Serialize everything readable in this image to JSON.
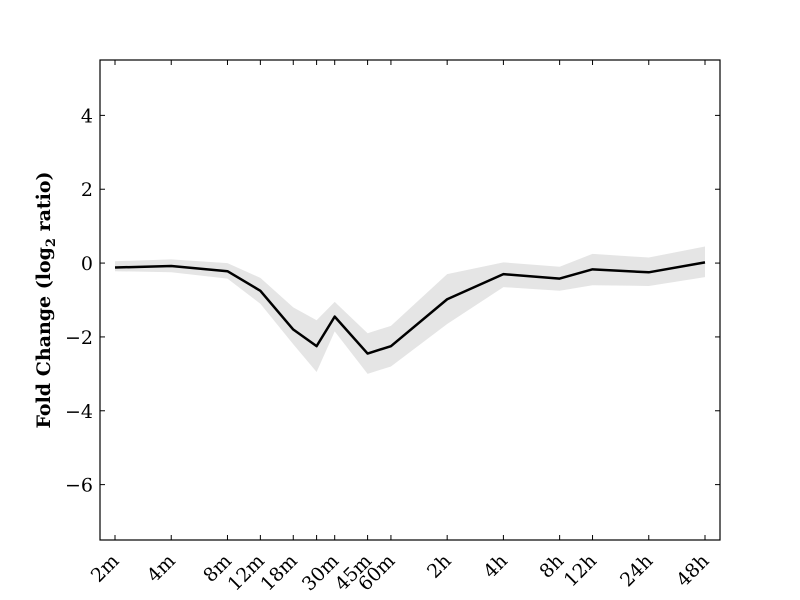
{
  "chart_data": {
    "type": "line",
    "title": "",
    "xlabel": "",
    "ylabel": "Fold Change (log",
    "ylabel_subscript": "2",
    "ylabel_suffix": " ratio)",
    "categories": [
      "2m",
      "4m",
      "8m",
      "12m",
      "18m",
      "",
      "30m",
      "45m",
      "60m",
      "2h",
      "4h",
      "8h",
      "12h",
      "24h",
      "48h"
    ],
    "x_log_minutes": [
      2,
      4,
      8,
      12,
      18,
      24,
      30,
      45,
      60,
      120,
      240,
      480,
      720,
      1440,
      2880
    ],
    "x_scale": "log",
    "ylim": [
      -7.5,
      5.5
    ],
    "y_ticks": [
      -6,
      -4,
      -2,
      0,
      2,
      4
    ],
    "y_tick_labels": [
      "−6",
      "−4",
      "−2",
      "0",
      "2",
      "4"
    ],
    "grid": false,
    "series": [
      {
        "values": [
          -0.12,
          -0.08,
          -0.22,
          -0.75,
          -1.8,
          -2.25,
          -1.45,
          -2.45,
          -2.25,
          -0.98,
          -0.3,
          -0.42,
          -0.17,
          -0.25,
          0.02
        ],
        "band_upper": [
          0.05,
          0.1,
          0.0,
          -0.4,
          -1.2,
          -1.55,
          -1.05,
          -1.9,
          -1.7,
          -0.3,
          0.02,
          -0.1,
          0.25,
          0.15,
          0.45
        ],
        "band_lower": [
          -0.22,
          -0.25,
          -0.42,
          -1.1,
          -2.2,
          -2.95,
          -1.85,
          -3.0,
          -2.8,
          -1.65,
          -0.65,
          -0.75,
          -0.6,
          -0.62,
          -0.38
        ],
        "color": "#000000",
        "band_color": "#e5e5e5"
      }
    ]
  }
}
